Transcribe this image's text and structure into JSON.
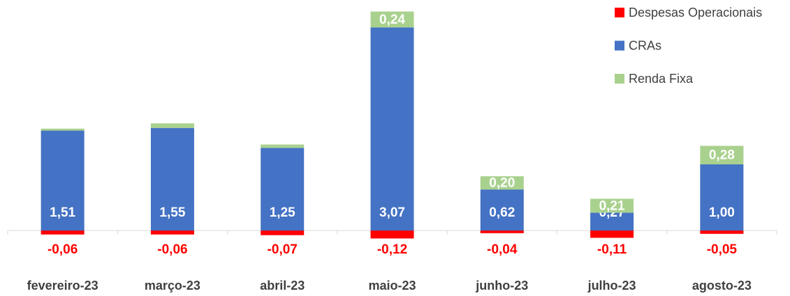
{
  "chart_data": {
    "type": "stacked_bar",
    "categories": [
      "fevereiro-23",
      "março-23",
      "abril-23",
      "maio-23",
      "junho-23",
      "julho-23",
      "agosto-23"
    ],
    "series": [
      {
        "name": "Despesas Operacionais",
        "color": "#ff0000",
        "values": [
          -0.06,
          -0.06,
          -0.07,
          -0.12,
          -0.04,
          -0.11,
          -0.05
        ],
        "value_labels": [
          "-0,06",
          "-0,06",
          "-0,07",
          "-0,12",
          "-0,04",
          "-0,11",
          "-0,05"
        ]
      },
      {
        "name": "CRAs",
        "color": "#4472c4",
        "values": [
          1.51,
          1.55,
          1.25,
          3.07,
          0.62,
          0.27,
          1.0
        ],
        "value_labels": [
          "1,51",
          "1,55",
          "1,25",
          "3,07",
          "0,62",
          "0,27",
          "1,00"
        ]
      },
      {
        "name": "Renda Fixa",
        "color": "#a9d18e",
        "values": [
          0.03,
          0.07,
          0.05,
          0.24,
          0.2,
          0.21,
          0.28
        ],
        "value_labels": [
          null,
          null,
          null,
          "0,24",
          "0,20",
          "0,21",
          "0,28"
        ]
      }
    ],
    "legend": "top-right"
  }
}
